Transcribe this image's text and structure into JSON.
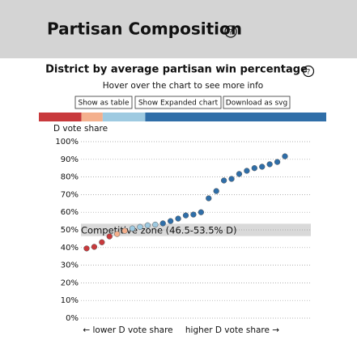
{
  "header": {
    "title": "Partisan Composition",
    "help": "?"
  },
  "toolbar": {
    "buttons": [
      "Show as table",
      "Show Expanded chart",
      "Download as svg"
    ]
  },
  "chart_data": {
    "type": "scatter",
    "title": "District by average partisan win percentage",
    "title_help": "?",
    "subtitle": "Hover over the chart to see more info",
    "ylabel": "D vote share",
    "x_labels": [
      "← lower D vote share",
      "higher D vote share →"
    ],
    "values": [
      39.5,
      40.4,
      43,
      46.3,
      47.7,
      49.5,
      50.8,
      51.7,
      52.6,
      53,
      53.7,
      55,
      56.4,
      58.2,
      58.7,
      60,
      67.9,
      72,
      78,
      78.9,
      81.7,
      83.5,
      85,
      85.8,
      87.2,
      88.5,
      91.7
    ],
    "colors": [
      "#c8393c",
      "#c8393c",
      "#c8393c",
      "#c8393c",
      "#f4b08d",
      "#f4b08d",
      "#9ecae1",
      "#9ecae1",
      "#9ecae1",
      "#9ecae1",
      "#2f6ea8",
      "#2f6ea8",
      "#2f6ea8",
      "#2f6ea8",
      "#2f6ea8",
      "#2f6ea8",
      "#2f6ea8",
      "#2f6ea8",
      "#2f6ea8",
      "#2f6ea8",
      "#2f6ea8",
      "#2f6ea8",
      "#2f6ea8",
      "#2f6ea8",
      "#2f6ea8",
      "#2f6ea8",
      "#2f6ea8"
    ],
    "ylim": [
      0,
      100
    ],
    "yticks": [
      {
        "value": 0,
        "label": "0%"
      },
      {
        "value": 10,
        "label": "10%"
      },
      {
        "value": 20,
        "label": "20%"
      },
      {
        "value": 30,
        "label": "30%"
      },
      {
        "value": 40,
        "label": "40%"
      },
      {
        "value": 50,
        "label": "50%"
      },
      {
        "value": 60,
        "label": "60%"
      },
      {
        "value": 70,
        "label": "70%"
      },
      {
        "value": 80,
        "label": "80%"
      },
      {
        "value": 90,
        "label": "90%"
      },
      {
        "value": 100,
        "label": "100%"
      }
    ],
    "grid": true,
    "band": {
      "range": [
        46.5,
        53.5
      ],
      "label": "Competitive zone (46.5-53.5% D)"
    }
  }
}
